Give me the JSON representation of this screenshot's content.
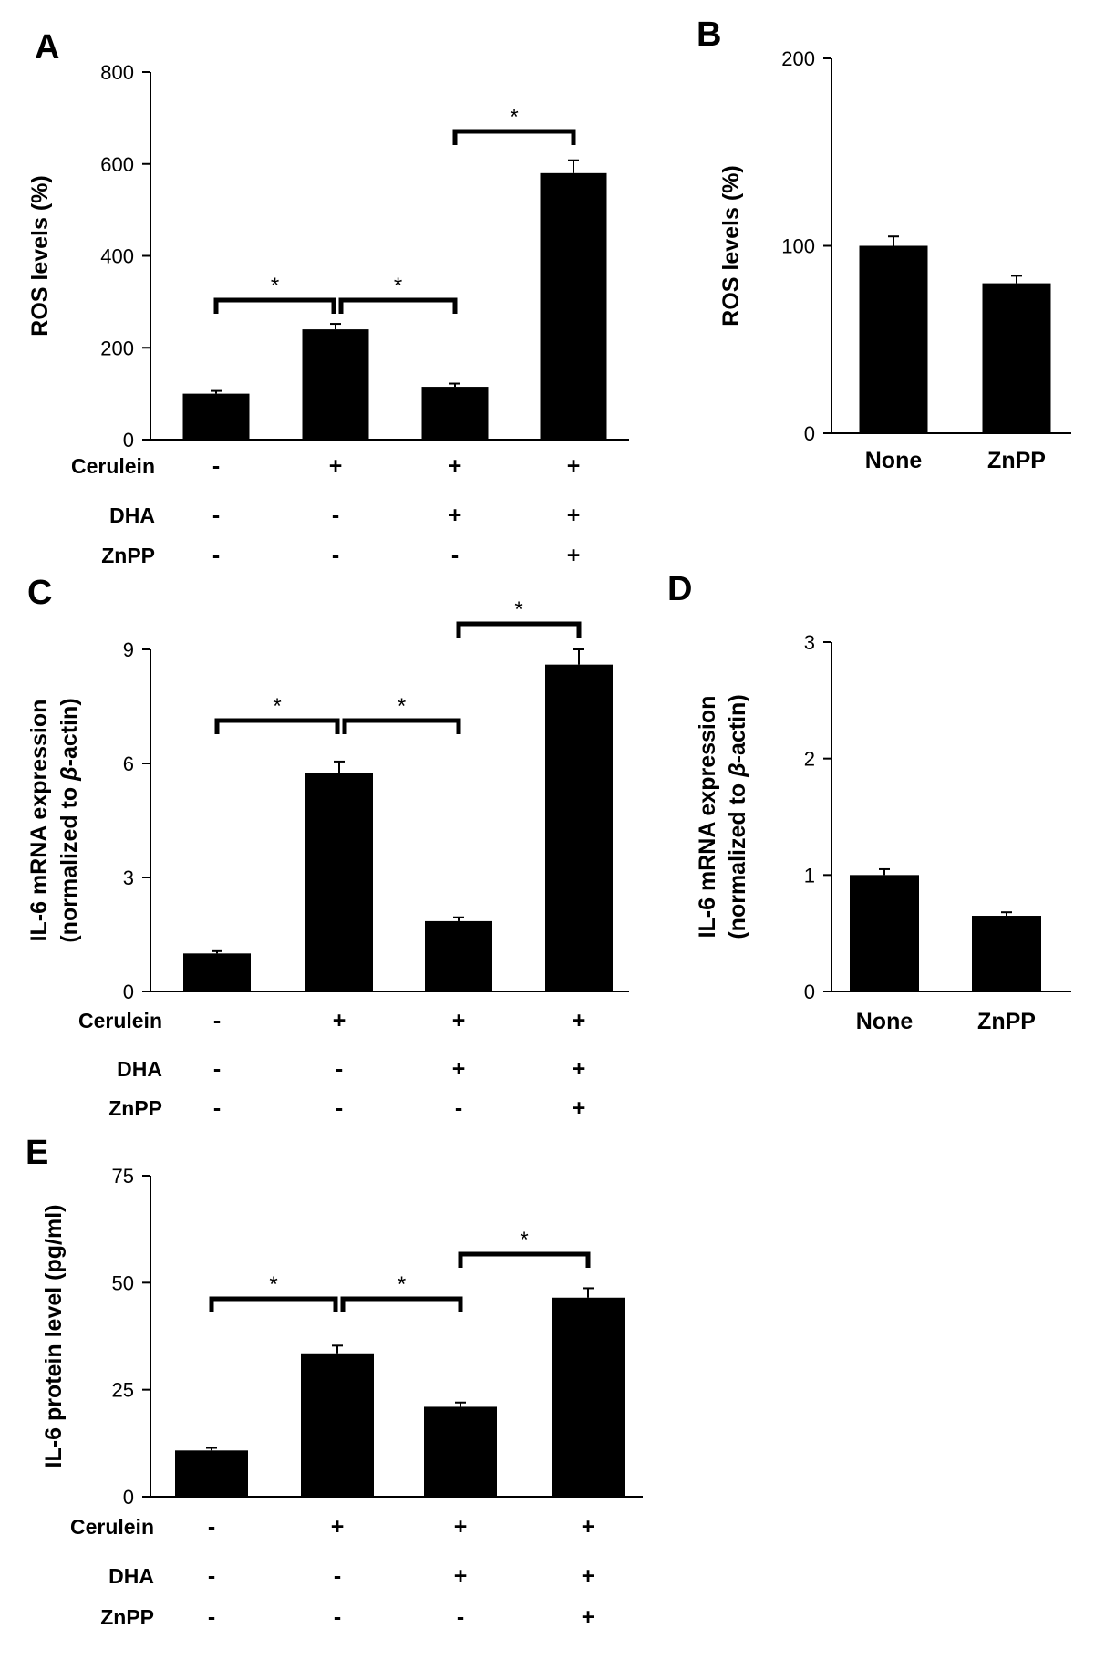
{
  "chart_data": [
    {
      "panel": "A",
      "type": "bar",
      "ylabel": "ROS levels (%)",
      "ylim": [
        0,
        800
      ],
      "yticks": [
        0,
        200,
        400,
        600,
        800
      ],
      "values": [
        100,
        240,
        115,
        580
      ],
      "errors": [
        6,
        12,
        7,
        28
      ],
      "treatments": [
        {
          "label": "Cerulein",
          "signs": [
            "-",
            "+",
            "+",
            "+"
          ]
        },
        {
          "label": "DHA",
          "signs": [
            "-",
            "-",
            "+",
            "+"
          ]
        },
        {
          "label": "ZnPP",
          "signs": [
            "-",
            "-",
            "-",
            "+"
          ]
        }
      ],
      "significance": [
        {
          "from": 0,
          "to": 1,
          "label": "*"
        },
        {
          "from": 1,
          "to": 2,
          "label": "*"
        },
        {
          "from": 2,
          "to": 3,
          "label": "*"
        }
      ]
    },
    {
      "panel": "B",
      "type": "bar",
      "ylabel": "ROS levels (%)",
      "ylim": [
        0,
        200
      ],
      "yticks": [
        0,
        100,
        200
      ],
      "categories": [
        "None",
        "ZnPP"
      ],
      "values": [
        100,
        80
      ],
      "errors": [
        5,
        4
      ]
    },
    {
      "panel": "C",
      "type": "bar",
      "ylabel": "IL-6 mRNA expression",
      "ylabel2_pre": "(normalized to ",
      "ylabel2_beta": "β",
      "ylabel2_post": "-actin)",
      "ylim": [
        0,
        9
      ],
      "yticks": [
        0,
        3,
        6,
        9
      ],
      "values": [
        1.0,
        5.75,
        1.85,
        8.6
      ],
      "errors": [
        0.06,
        0.3,
        0.1,
        0.4
      ],
      "treatments": [
        {
          "label": "Cerulein",
          "signs": [
            "-",
            "+",
            "+",
            "+"
          ]
        },
        {
          "label": "DHA",
          "signs": [
            "-",
            "-",
            "+",
            "+"
          ]
        },
        {
          "label": "ZnPP",
          "signs": [
            "-",
            "-",
            "-",
            "+"
          ]
        }
      ],
      "significance": [
        {
          "from": 0,
          "to": 1,
          "label": "*"
        },
        {
          "from": 1,
          "to": 2,
          "label": "*"
        },
        {
          "from": 2,
          "to": 3,
          "label": "*"
        }
      ]
    },
    {
      "panel": "D",
      "type": "bar",
      "ylabel": "IL-6 mRNA expression",
      "ylabel2_pre": "(normalized to ",
      "ylabel2_beta": "β",
      "ylabel2_post": "-actin)",
      "ylim": [
        0,
        3
      ],
      "yticks": [
        0,
        1,
        2,
        3
      ],
      "categories": [
        "None",
        "ZnPP"
      ],
      "values": [
        1.0,
        0.65
      ],
      "errors": [
        0.05,
        0.03
      ]
    },
    {
      "panel": "E",
      "type": "bar",
      "ylabel": "IL-6 protein level (pg/ml)",
      "ylim": [
        0,
        75
      ],
      "yticks": [
        0,
        25,
        50,
        75
      ],
      "values": [
        10.8,
        33.5,
        21.0,
        46.5
      ],
      "errors": [
        0.6,
        1.8,
        1.0,
        2.2
      ],
      "treatments": [
        {
          "label": "Cerulein",
          "signs": [
            "-",
            "+",
            "+",
            "+"
          ]
        },
        {
          "label": "DHA",
          "signs": [
            "-",
            "-",
            "+",
            "+"
          ]
        },
        {
          "label": "ZnPP",
          "signs": [
            "-",
            "-",
            "-",
            "+"
          ]
        }
      ],
      "significance": [
        {
          "from": 0,
          "to": 1,
          "label": "*"
        },
        {
          "from": 1,
          "to": 2,
          "label": "*"
        },
        {
          "from": 2,
          "to": 3,
          "label": "*"
        }
      ]
    }
  ]
}
